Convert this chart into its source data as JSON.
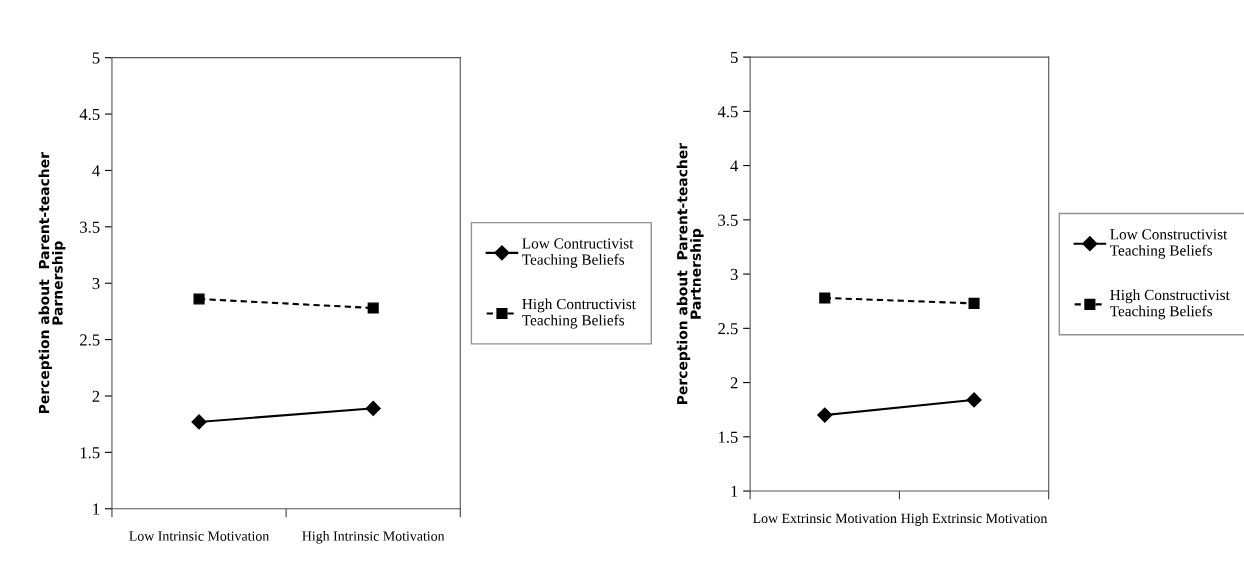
{
  "chart_data": [
    {
      "type": "line",
      "ylabel": "Perception about  Parent-teacher\nParnership",
      "categories": [
        "Low Intrinsic Motivation",
        "High Intrinsic Motivation"
      ],
      "ylim": [
        1,
        5
      ],
      "yticks": [
        1,
        1.5,
        2,
        2.5,
        3,
        3.5,
        4,
        4.5,
        5
      ],
      "grid": false,
      "legend": "right",
      "series": [
        {
          "name": "Low Contructivist\nTeaching Beliefs",
          "color": "#000000",
          "values": [
            1.77,
            1.89
          ],
          "marker": "diamond",
          "line_style": "solid"
        },
        {
          "name": "High Contructivist\nTeaching Beliefs",
          "color": "#000000",
          "values": [
            2.86,
            2.78
          ],
          "marker": "square",
          "line_style": "dashed"
        }
      ]
    },
    {
      "type": "line",
      "ylabel": "Perception about  Parent-teacher\nPartnership",
      "categories": [
        "Low Extrinsic Motivation",
        "High Extrinsic Motivation"
      ],
      "ylim": [
        1,
        5
      ],
      "yticks": [
        1,
        1.5,
        2,
        2.5,
        3,
        3.5,
        4,
        4.5,
        5
      ],
      "grid": false,
      "legend": "right",
      "series": [
        {
          "name": "Low Constructivist\nTeaching Beliefs",
          "color": "#000000",
          "values": [
            1.7,
            1.84
          ],
          "marker": "diamond",
          "line_style": "solid"
        },
        {
          "name": "High Constructivist\nTeaching Beliefs",
          "color": "#000000",
          "values": [
            2.78,
            2.73
          ],
          "marker": "square",
          "line_style": "dashed"
        }
      ]
    }
  ]
}
